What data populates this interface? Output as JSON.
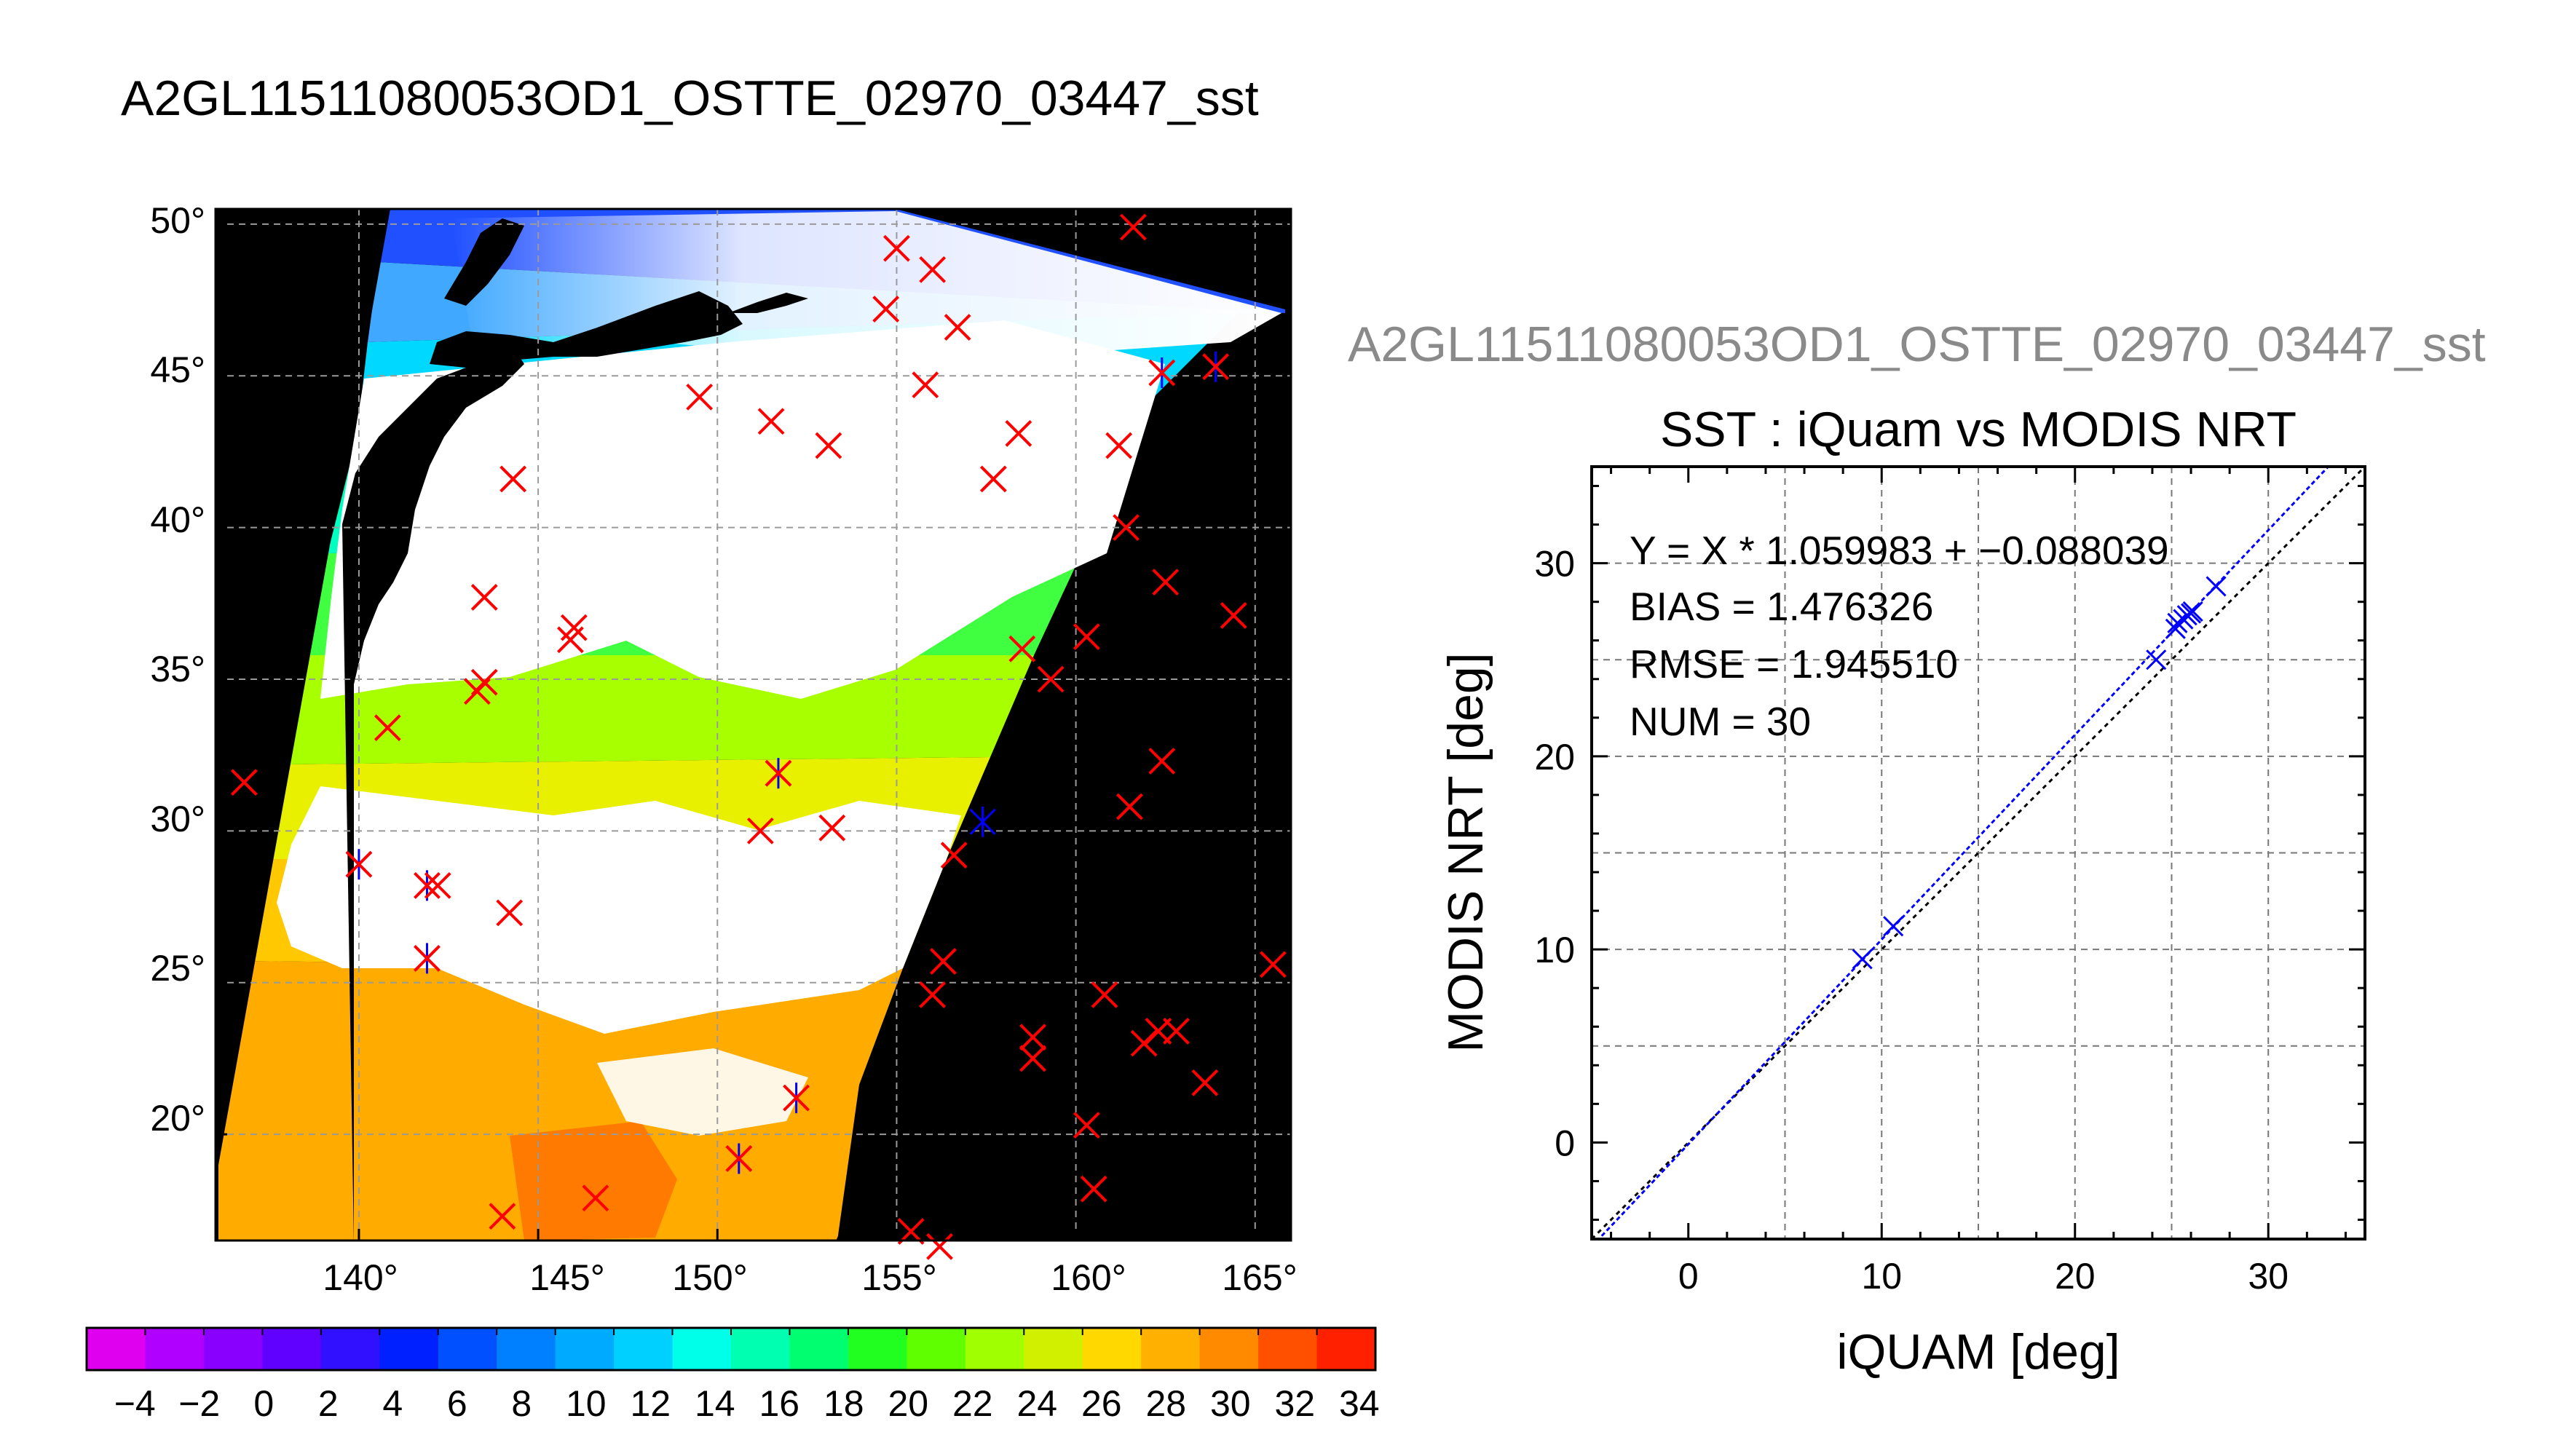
{
  "figure": {
    "main_title": "A2GL11511080053OD1_OSTTE_02970_03447_sst",
    "scatter_title": "A2GL11511080053OD1_OSTTE_02970_03447_sst"
  },
  "colors": {
    "marker_red": "#ff0000",
    "marker_blue": "#0000ff",
    "map_background": "#000000",
    "cloud_white": "#ffffff",
    "grid_gray": "#9a9a9a",
    "fit_line": "#0000ff",
    "identity_line": "#000000"
  },
  "icons": {
    "red_marker": "x-cross-mark",
    "blue_marker": "x-cross-mark",
    "matched_marker": "asterisk-mark"
  },
  "chart_data": [
    {
      "type": "heatmap",
      "title": "A2GL11511080053OD1_OSTTE_02970_03447_sst",
      "x_tick_labels": [
        "140°",
        "145°",
        "150°",
        "155°",
        "160°",
        "165°"
      ],
      "y_tick_labels": [
        "20°",
        "25°",
        "30°",
        "35°",
        "40°",
        "45°",
        "50°"
      ],
      "xlim": [
        136,
        166
      ],
      "ylim": [
        16.5,
        50.5
      ],
      "grid": true,
      "value": "sea surface temperature",
      "colorbar": {
        "tick_labels": [
          "−4",
          "−2",
          "0",
          "2",
          "4",
          "6",
          "8",
          "10",
          "12",
          "14",
          "16",
          "18",
          "20",
          "22",
          "24",
          "26",
          "28",
          "30",
          "32",
          "34"
        ],
        "range": [
          -5,
          35
        ],
        "colors": [
          "#e000f0",
          "#b000ff",
          "#8a00ff",
          "#6000ff",
          "#3010ff",
          "#0020ff",
          "#0050ff",
          "#0080ff",
          "#00aaff",
          "#00d0ff",
          "#00ffe8",
          "#00ffb0",
          "#00ff70",
          "#20ff20",
          "#60ff00",
          "#a0ff00",
          "#d0f000",
          "#ffd800",
          "#ffb000",
          "#ff8a00",
          "#ff5000",
          "#ff2000"
        ]
      },
      "markers": [
        {
          "lon": 136.8,
          "lat": 31.6,
          "kind": "red"
        },
        {
          "lon": 140.0,
          "lat": 28.9,
          "kind": "matched"
        },
        {
          "lon": 140.8,
          "lat": 33.4,
          "kind": "red"
        },
        {
          "lon": 141.9,
          "lat": 28.2,
          "kind": "matched"
        },
        {
          "lon": 142.2,
          "lat": 28.2,
          "kind": "red"
        },
        {
          "lon": 141.9,
          "lat": 25.8,
          "kind": "matched"
        },
        {
          "lon": 143.3,
          "lat": 34.6,
          "kind": "red"
        },
        {
          "lon": 143.5,
          "lat": 34.9,
          "kind": "red"
        },
        {
          "lon": 143.5,
          "lat": 37.7,
          "kind": "red"
        },
        {
          "lon": 144.3,
          "lat": 41.6,
          "kind": "red"
        },
        {
          "lon": 144.2,
          "lat": 27.3,
          "kind": "red"
        },
        {
          "lon": 144.0,
          "lat": 17.3,
          "kind": "red"
        },
        {
          "lon": 145.9,
          "lat": 36.3,
          "kind": "red"
        },
        {
          "lon": 146.0,
          "lat": 36.7,
          "kind": "red"
        },
        {
          "lon": 146.6,
          "lat": 17.9,
          "kind": "red"
        },
        {
          "lon": 149.5,
          "lat": 44.3,
          "kind": "red"
        },
        {
          "lon": 150.6,
          "lat": 19.2,
          "kind": "matched"
        },
        {
          "lon": 151.2,
          "lat": 30.0,
          "kind": "red"
        },
        {
          "lon": 151.5,
          "lat": 43.5,
          "kind": "red"
        },
        {
          "lon": 151.7,
          "lat": 31.9,
          "kind": "matched"
        },
        {
          "lon": 152.2,
          "lat": 21.2,
          "kind": "matched"
        },
        {
          "lon": 153.1,
          "lat": 42.7,
          "kind": "red"
        },
        {
          "lon": 153.2,
          "lat": 30.1,
          "kind": "red"
        },
        {
          "lon": 154.7,
          "lat": 47.2,
          "kind": "red"
        },
        {
          "lon": 155.0,
          "lat": 49.2,
          "kind": "red"
        },
        {
          "lon": 155.4,
          "lat": 16.8,
          "kind": "red"
        },
        {
          "lon": 155.8,
          "lat": 44.7,
          "kind": "red"
        },
        {
          "lon": 156.0,
          "lat": 48.5,
          "kind": "red"
        },
        {
          "lon": 156.2,
          "lat": 16.3,
          "kind": "red"
        },
        {
          "lon": 156.3,
          "lat": 25.7,
          "kind": "red"
        },
        {
          "lon": 156.0,
          "lat": 24.6,
          "kind": "red"
        },
        {
          "lon": 156.6,
          "lat": 29.2,
          "kind": "red"
        },
        {
          "lon": 156.7,
          "lat": 46.6,
          "kind": "red"
        },
        {
          "lon": 157.4,
          "lat": 30.3,
          "kind": "blue"
        },
        {
          "lon": 157.7,
          "lat": 41.6,
          "kind": "red"
        },
        {
          "lon": 158.4,
          "lat": 43.1,
          "kind": "red"
        },
        {
          "lon": 158.5,
          "lat": 36.0,
          "kind": "red"
        },
        {
          "lon": 158.8,
          "lat": 23.2,
          "kind": "red"
        },
        {
          "lon": 158.8,
          "lat": 22.5,
          "kind": "red"
        },
        {
          "lon": 159.3,
          "lat": 35.0,
          "kind": "red"
        },
        {
          "lon": 160.3,
          "lat": 36.4,
          "kind": "red"
        },
        {
          "lon": 160.3,
          "lat": 20.3,
          "kind": "red"
        },
        {
          "lon": 160.5,
          "lat": 18.2,
          "kind": "red"
        },
        {
          "lon": 160.8,
          "lat": 24.6,
          "kind": "red"
        },
        {
          "lon": 161.2,
          "lat": 42.7,
          "kind": "red"
        },
        {
          "lon": 161.4,
          "lat": 40.0,
          "kind": "red"
        },
        {
          "lon": 161.5,
          "lat": 30.8,
          "kind": "red"
        },
        {
          "lon": 161.6,
          "lat": 49.9,
          "kind": "red"
        },
        {
          "lon": 161.9,
          "lat": 23.0,
          "kind": "red"
        },
        {
          "lon": 162.3,
          "lat": 23.4,
          "kind": "red"
        },
        {
          "lon": 162.4,
          "lat": 45.1,
          "kind": "matched"
        },
        {
          "lon": 162.4,
          "lat": 32.3,
          "kind": "red"
        },
        {
          "lon": 162.5,
          "lat": 38.2,
          "kind": "red"
        },
        {
          "lon": 162.8,
          "lat": 23.4,
          "kind": "red"
        },
        {
          "lon": 163.6,
          "lat": 21.7,
          "kind": "red"
        },
        {
          "lon": 163.9,
          "lat": 45.3,
          "kind": "matched"
        },
        {
          "lon": 164.4,
          "lat": 37.1,
          "kind": "red"
        },
        {
          "lon": 165.5,
          "lat": 25.6,
          "kind": "red"
        }
      ]
    },
    {
      "type": "scatter",
      "title": "SST : iQuam vs MODIS NRT",
      "xlabel": "iQUAM [deg]",
      "ylabel": "MODIS NRT [deg]",
      "xlim": [
        -5,
        35
      ],
      "ylim": [
        -5,
        35
      ],
      "xticks": [
        0,
        10,
        20,
        30
      ],
      "yticks": [
        0,
        10,
        20,
        30
      ],
      "grid": true,
      "stats": {
        "fit": "Y = X * 1.059983 + −0.088039",
        "bias": "BIAS = 1.476326",
        "rmse": "RMSE = 1.945510",
        "num": "NUM = 30"
      },
      "fit_line": {
        "slope": 1.059983,
        "intercept": -0.088039
      },
      "identity_line": {
        "slope": 1,
        "intercept": 0
      },
      "points": [
        {
          "x": 9.0,
          "y": 9.5
        },
        {
          "x": 10.6,
          "y": 11.2
        },
        {
          "x": 24.2,
          "y": 25.0
        },
        {
          "x": 25.2,
          "y": 26.6
        },
        {
          "x": 25.3,
          "y": 26.9
        },
        {
          "x": 25.6,
          "y": 27.1
        },
        {
          "x": 25.8,
          "y": 27.3
        },
        {
          "x": 26.0,
          "y": 27.4
        },
        {
          "x": 26.1,
          "y": 27.5
        },
        {
          "x": 27.3,
          "y": 28.8
        }
      ]
    }
  ]
}
